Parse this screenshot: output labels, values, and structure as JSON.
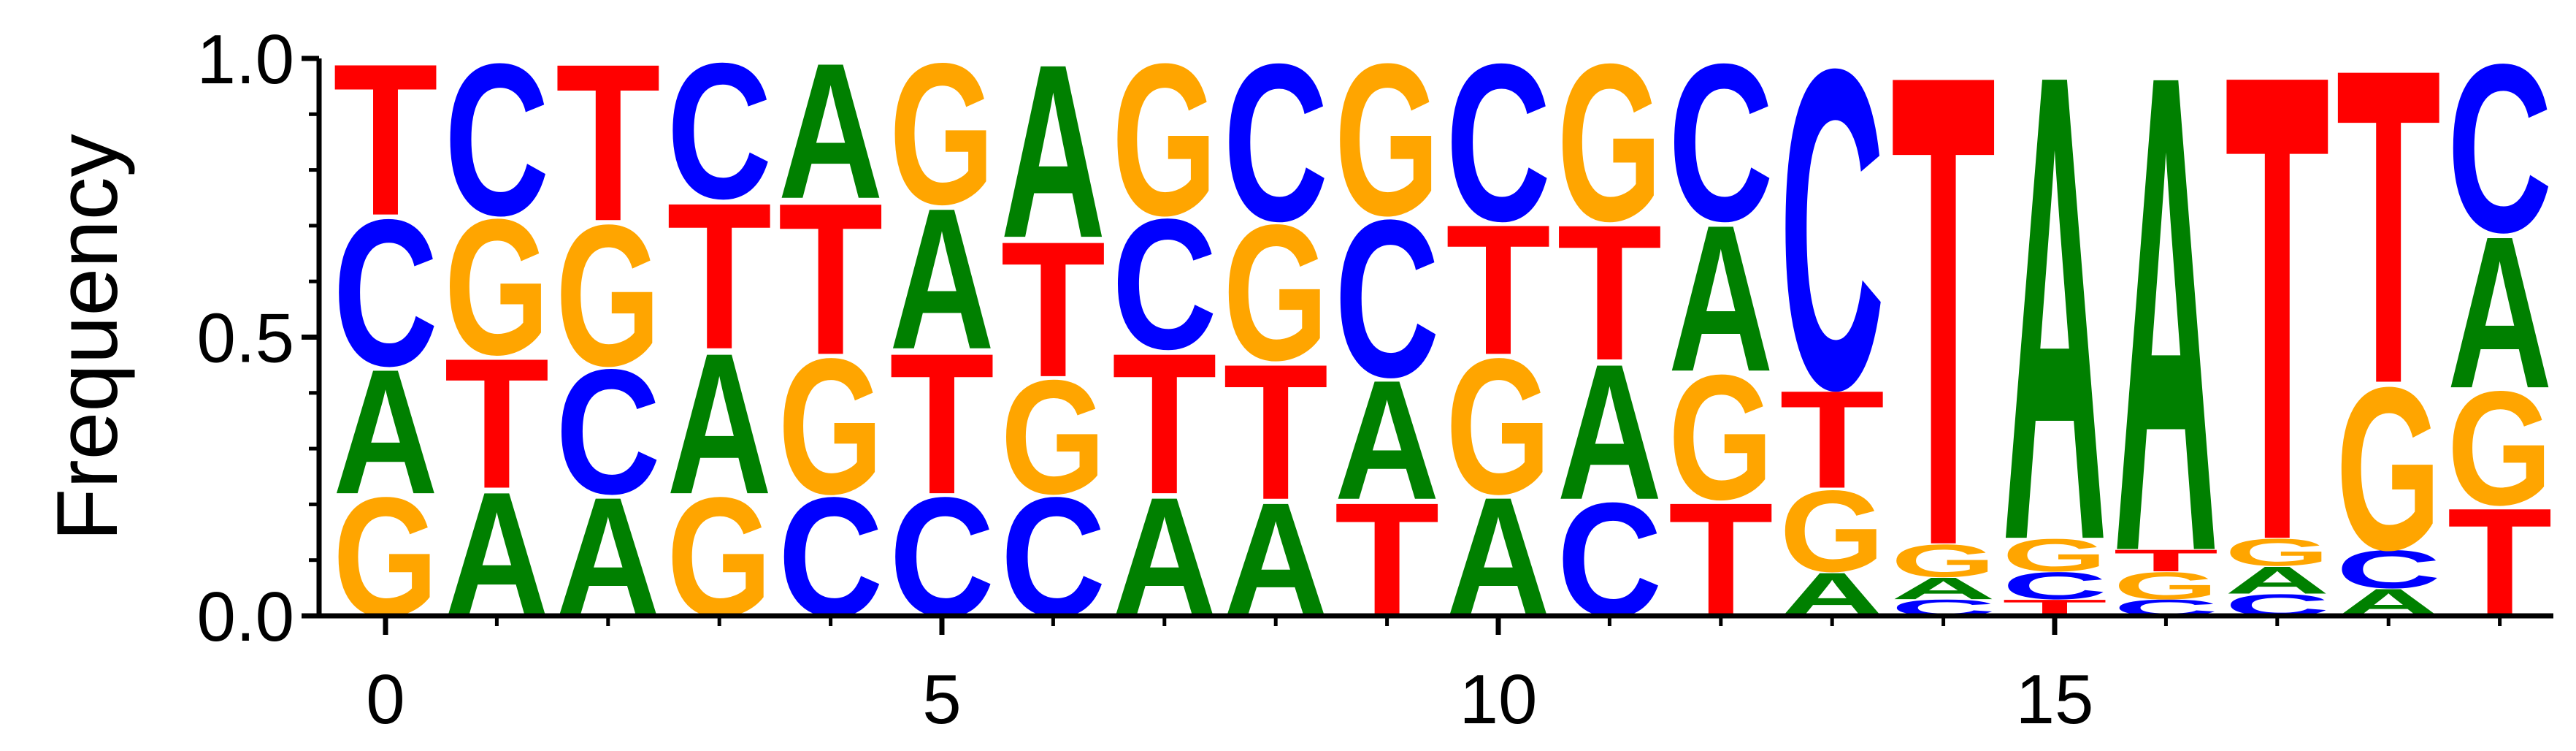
{
  "chart_data": {
    "type": "sequence-logo",
    "ylabel": "Frequency",
    "xlabel": "",
    "ylim": [
      0,
      1
    ],
    "yticks": [
      "0.0",
      "0.5",
      "1.0"
    ],
    "xticks": [
      "0",
      "5",
      "10",
      "15"
    ],
    "positions": [
      0,
      1,
      2,
      3,
      4,
      5,
      6,
      7,
      8,
      9,
      10,
      11,
      12,
      13,
      14,
      15,
      16,
      17,
      18,
      19
    ],
    "colors": {
      "A": "#008000",
      "C": "#0000ff",
      "G": "#ffa500",
      "T": "#ff0000"
    },
    "stacks": [
      [
        [
          "G",
          0.22
        ],
        [
          "A",
          0.23
        ],
        [
          "C",
          0.27
        ],
        [
          "T",
          0.28
        ]
      ],
      [
        [
          "A",
          0.23
        ],
        [
          "T",
          0.24
        ],
        [
          "G",
          0.25
        ],
        [
          "C",
          0.28
        ]
      ],
      [
        [
          "A",
          0.22
        ],
        [
          "C",
          0.23
        ],
        [
          "G",
          0.26
        ],
        [
          "T",
          0.29
        ]
      ],
      [
        [
          "G",
          0.22
        ],
        [
          "A",
          0.26
        ],
        [
          "T",
          0.27
        ],
        [
          "C",
          0.25
        ]
      ],
      [
        [
          "C",
          0.22
        ],
        [
          "G",
          0.25
        ],
        [
          "T",
          0.28
        ],
        [
          "A",
          0.25
        ]
      ],
      [
        [
          "C",
          0.22
        ],
        [
          "T",
          0.26
        ],
        [
          "A",
          0.26
        ],
        [
          "G",
          0.26
        ]
      ],
      [
        [
          "C",
          0.22
        ],
        [
          "G",
          0.21
        ],
        [
          "T",
          0.25
        ],
        [
          "A",
          0.32
        ]
      ],
      [
        [
          "A",
          0.22
        ],
        [
          "T",
          0.26
        ],
        [
          "C",
          0.24
        ],
        [
          "G",
          0.28
        ]
      ],
      [
        [
          "A",
          0.21
        ],
        [
          "T",
          0.25
        ],
        [
          "G",
          0.25
        ],
        [
          "C",
          0.29
        ]
      ],
      [
        [
          "T",
          0.21
        ],
        [
          "A",
          0.22
        ],
        [
          "C",
          0.29
        ],
        [
          "G",
          0.28
        ]
      ],
      [
        [
          "A",
          0.22
        ],
        [
          "G",
          0.25
        ],
        [
          "T",
          0.24
        ],
        [
          "C",
          0.29
        ]
      ],
      [
        [
          "C",
          0.21
        ],
        [
          "A",
          0.25
        ],
        [
          "T",
          0.25
        ],
        [
          "G",
          0.29
        ]
      ],
      [
        [
          "T",
          0.21
        ],
        [
          "G",
          0.23
        ],
        [
          "A",
          0.27
        ],
        [
          "C",
          0.29
        ]
      ],
      [
        [
          "A",
          0.08
        ],
        [
          "G",
          0.15
        ],
        [
          "T",
          0.18
        ],
        [
          "C",
          0.59
        ]
      ],
      [
        [
          "C",
          0.03
        ],
        [
          "A",
          0.04
        ],
        [
          "G",
          0.06
        ],
        [
          "T",
          0.87
        ]
      ],
      [
        [
          "T",
          0.03
        ],
        [
          "C",
          0.05
        ],
        [
          "G",
          0.06
        ],
        [
          "A",
          0.86
        ]
      ],
      [
        [
          "C",
          0.03
        ],
        [
          "G",
          0.05
        ],
        [
          "T",
          0.04
        ],
        [
          "A",
          0.88
        ]
      ],
      [
        [
          "C",
          0.04
        ],
        [
          "A",
          0.05
        ],
        [
          "G",
          0.05
        ],
        [
          "T",
          0.86
        ]
      ],
      [
        [
          "A",
          0.05
        ],
        [
          "C",
          0.07
        ],
        [
          "G",
          0.3
        ],
        [
          "T",
          0.58
        ]
      ],
      [
        [
          "T",
          0.2
        ],
        [
          "G",
          0.21
        ],
        [
          "A",
          0.28
        ],
        [
          "C",
          0.31
        ]
      ]
    ]
  }
}
